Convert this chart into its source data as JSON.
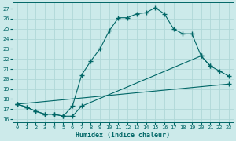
{
  "xlabel": "Humidex (Indice chaleur)",
  "bg_color": "#cceaea",
  "grid_color": "#b0d8d8",
  "line_color": "#006666",
  "xticks": [
    0,
    1,
    2,
    3,
    4,
    5,
    6,
    7,
    8,
    9,
    10,
    11,
    12,
    13,
    14,
    15,
    16,
    17,
    18,
    19,
    20,
    21,
    22,
    23
  ],
  "yticks": [
    16,
    17,
    18,
    19,
    20,
    21,
    22,
    23,
    24,
    25,
    26,
    27
  ],
  "xlim": [
    -0.5,
    23.5
  ],
  "ylim": [
    15.7,
    27.6
  ],
  "line1_x": [
    0,
    1,
    2,
    3,
    4,
    5,
    6,
    7,
    8,
    9,
    10,
    11,
    12,
    13,
    14,
    15,
    16,
    17,
    18,
    19,
    20,
    21
  ],
  "line1_y": [
    17.5,
    17.2,
    16.8,
    16.5,
    16.5,
    16.3,
    17.3,
    20.4,
    21.8,
    23.0,
    24.8,
    26.1,
    26.1,
    26.5,
    26.6,
    27.1,
    26.5,
    25.0,
    24.5,
    24.5,
    22.3,
    21.3
  ],
  "line2_x": [
    0,
    1,
    2,
    3,
    4,
    5,
    6,
    7,
    20,
    21,
    22,
    23
  ],
  "line2_y": [
    17.5,
    17.2,
    16.8,
    16.5,
    16.5,
    16.3,
    16.3,
    17.3,
    22.3,
    21.3,
    20.8,
    20.3
  ],
  "line3_x": [
    0,
    23
  ],
  "line3_y": [
    17.5,
    19.5
  ]
}
